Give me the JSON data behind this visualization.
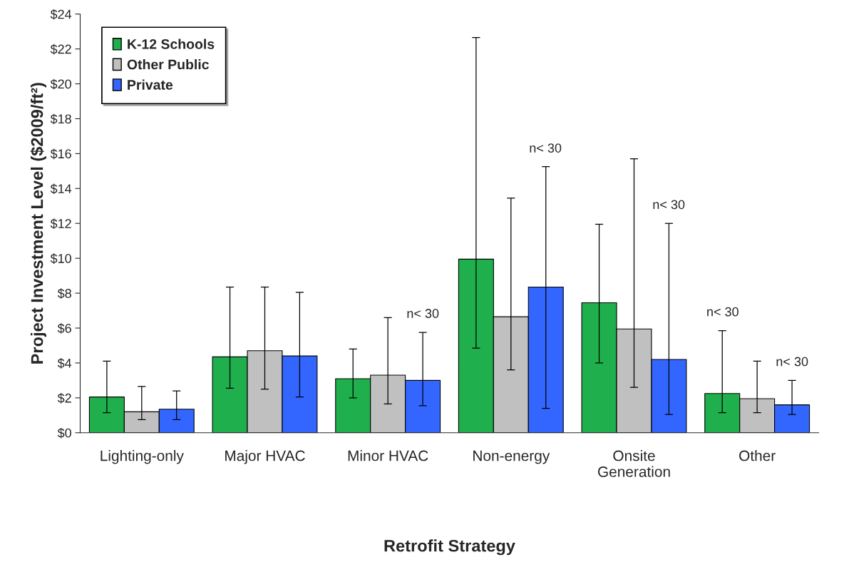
{
  "chart_data": {
    "type": "bar",
    "xlabel": "Retrofit Strategy",
    "ylabel": "Project Investment Level ($2009/ft²)",
    "categories": [
      "Lighting-only",
      "Major HVAC",
      "Minor HVAC",
      "Non-energy",
      "Onsite\nGeneration",
      "Other"
    ],
    "series": [
      {
        "name": "K-12 Schools",
        "color": "#1fb04d",
        "values": [
          2.05,
          4.35,
          3.1,
          9.95,
          7.45,
          2.25
        ],
        "errors": [
          [
            1.15,
            4.1
          ],
          [
            2.55,
            8.35
          ],
          [
            2.0,
            4.8
          ],
          [
            4.85,
            22.65
          ],
          [
            4.0,
            11.95
          ],
          [
            1.15,
            5.85
          ]
        ]
      },
      {
        "name": "Other Public",
        "color": "#c0c0c0",
        "values": [
          1.2,
          4.7,
          3.3,
          6.65,
          5.95,
          1.95
        ],
        "errors": [
          [
            0.75,
            2.65
          ],
          [
            2.5,
            8.35
          ],
          [
            1.65,
            6.6
          ],
          [
            3.6,
            13.45
          ],
          [
            2.6,
            15.7
          ],
          [
            1.15,
            4.1
          ]
        ]
      },
      {
        "name": "Private",
        "color": "#3366ff",
        "values": [
          1.35,
          4.4,
          3.0,
          8.35,
          4.2,
          1.6
        ],
        "errors": [
          [
            0.75,
            2.4
          ],
          [
            2.05,
            8.05
          ],
          [
            1.55,
            5.75
          ],
          [
            1.4,
            15.25
          ],
          [
            1.05,
            12.0
          ],
          [
            1.05,
            3.0
          ]
        ]
      }
    ],
    "ylim": [
      0,
      24
    ],
    "yticks": [
      {
        "value": 0,
        "label": "$0"
      },
      {
        "value": 2,
        "label": "$2"
      },
      {
        "value": 4,
        "label": "$4"
      },
      {
        "value": 6,
        "label": "$6"
      },
      {
        "value": 8,
        "label": "$8"
      },
      {
        "value": 10,
        "label": "$10"
      },
      {
        "value": 12,
        "label": "$12"
      },
      {
        "value": 14,
        "label": "$14"
      },
      {
        "value": 16,
        "label": "$16"
      },
      {
        "value": 18,
        "label": "$18"
      },
      {
        "value": 20,
        "label": "$20"
      },
      {
        "value": 22,
        "label": "$22"
      },
      {
        "value": 24,
        "label": "$24"
      }
    ],
    "annotations": [
      "n< 30",
      "n< 30",
      "n< 30",
      "n< 30",
      "n< 30"
    ],
    "grid": false,
    "legend": "top left"
  }
}
